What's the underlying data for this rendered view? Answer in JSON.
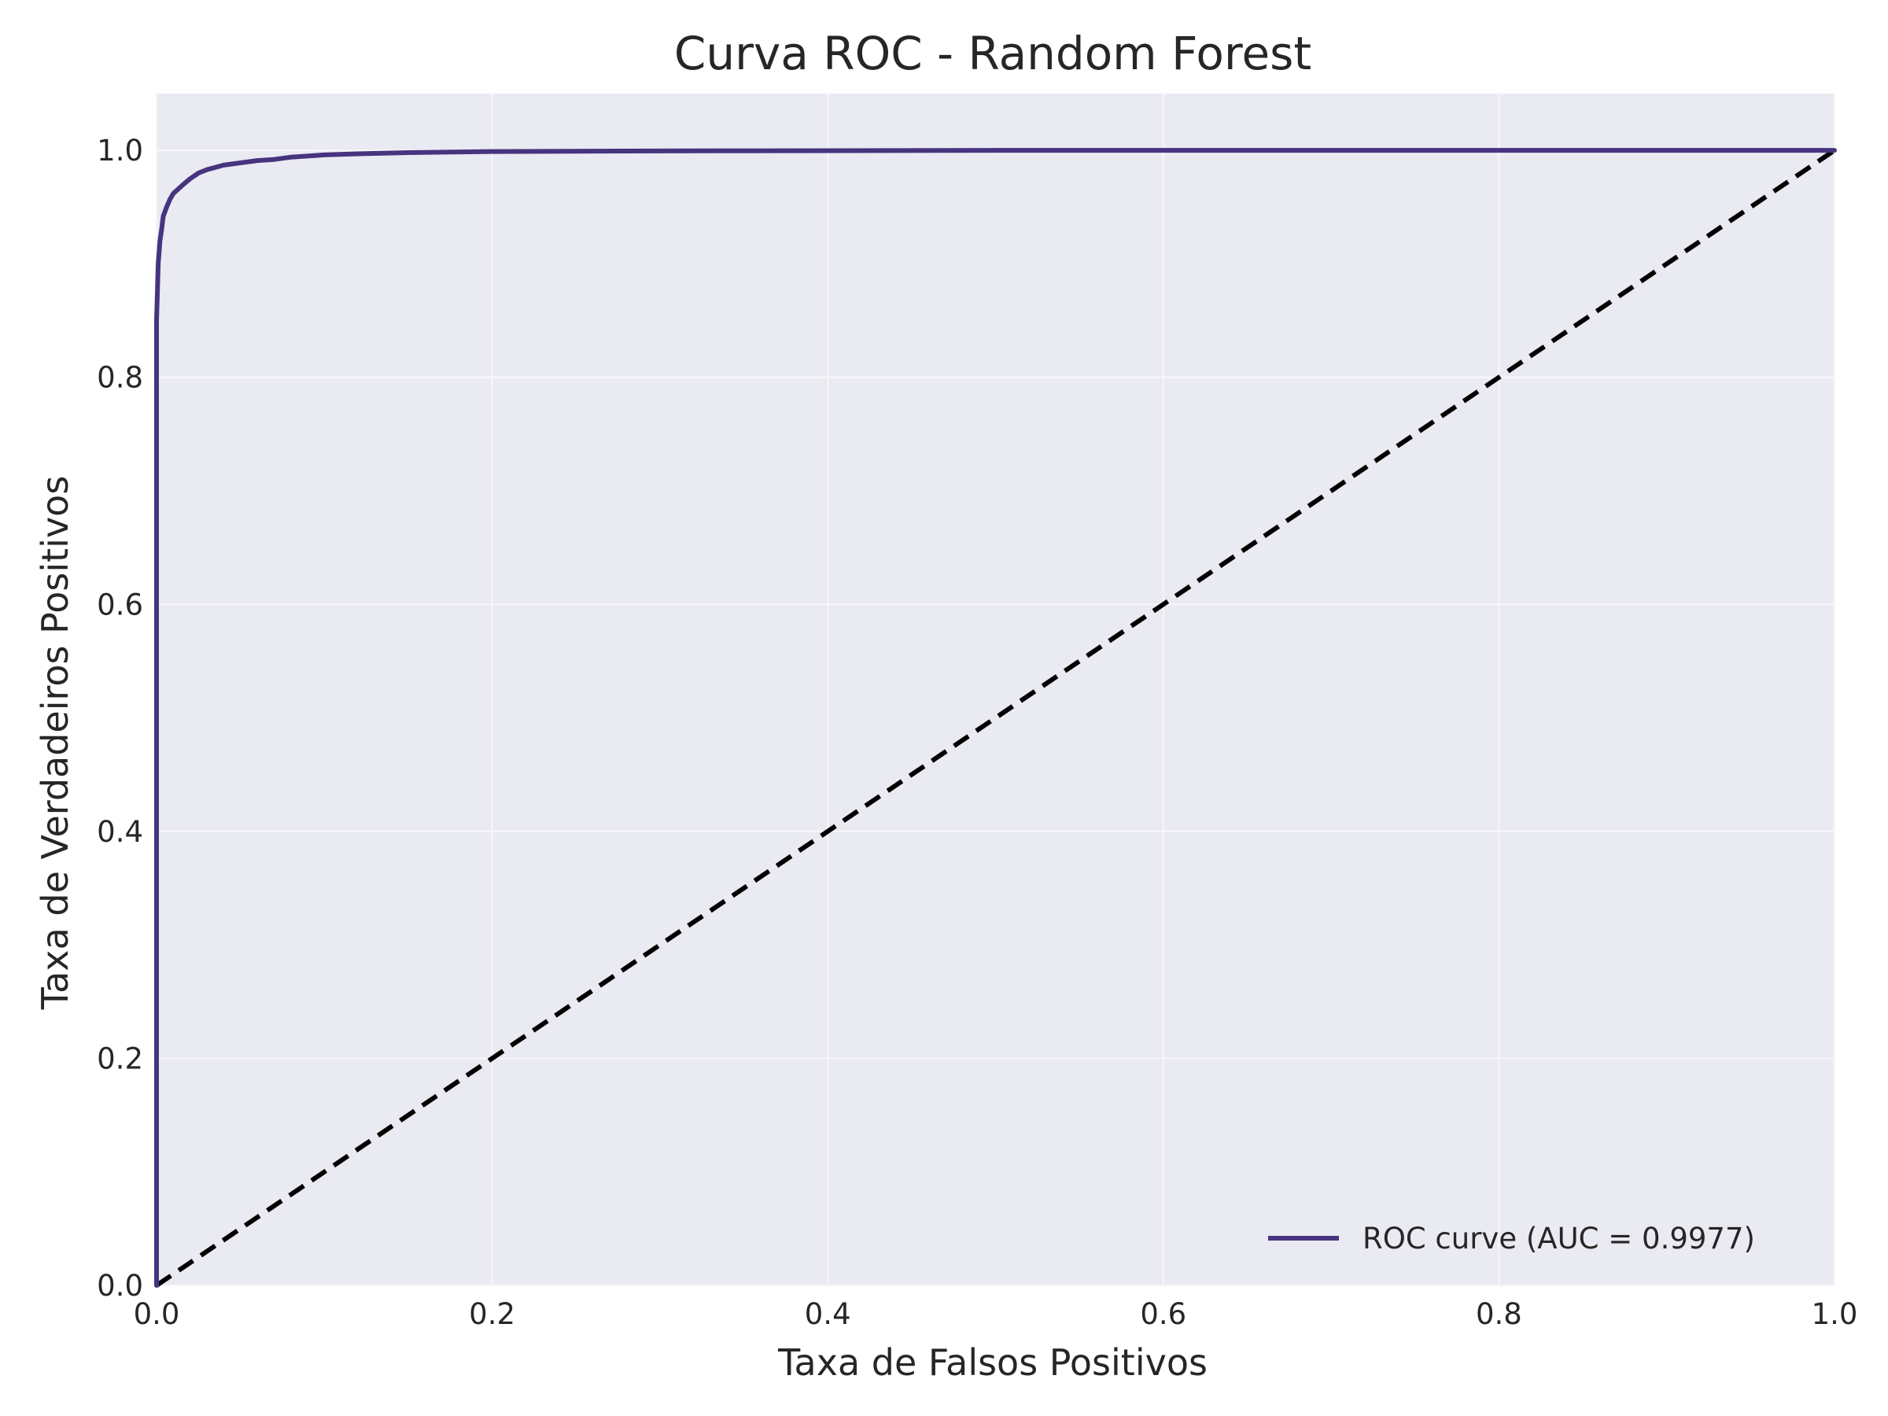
{
  "chart_data": {
    "type": "line",
    "title": "Curva ROC - Random Forest",
    "xlabel": "Taxa de Falsos Positivos",
    "ylabel": "Taxa de Verdadeiros Positivos",
    "xlim": [
      0.0,
      1.0
    ],
    "ylim": [
      0.0,
      1.05
    ],
    "x_ticks": [
      0.0,
      0.2,
      0.4,
      0.6,
      0.8,
      1.0
    ],
    "x_tick_labels": [
      "0.0",
      "0.2",
      "0.4",
      "0.6",
      "0.8",
      "1.0"
    ],
    "y_ticks": [
      0.0,
      0.2,
      0.4,
      0.6,
      0.8,
      1.0
    ],
    "y_tick_labels": [
      "0.0",
      "0.2",
      "0.4",
      "0.6",
      "0.8",
      "1.0"
    ],
    "grid": true,
    "legend_position": "lower-right",
    "background_color": "#eaeaf2",
    "series": [
      {
        "name": "ROC curve (AUC = 0.9977)",
        "color": "#46347f",
        "line_style": "solid",
        "x": [
          0.0,
          0.0,
          0.001,
          0.002,
          0.003,
          0.004,
          0.006,
          0.008,
          0.01,
          0.013,
          0.016,
          0.02,
          0.025,
          0.03,
          0.035,
          0.04,
          0.05,
          0.06,
          0.07,
          0.08,
          0.09,
          0.1,
          0.12,
          0.15,
          0.2,
          0.3,
          0.5,
          0.7,
          0.9,
          1.0
        ],
        "y": [
          0.0,
          0.85,
          0.9,
          0.92,
          0.93,
          0.942,
          0.95,
          0.957,
          0.962,
          0.966,
          0.97,
          0.975,
          0.98,
          0.983,
          0.985,
          0.987,
          0.989,
          0.991,
          0.992,
          0.994,
          0.995,
          0.996,
          0.997,
          0.998,
          0.999,
          0.9995,
          1.0,
          1.0,
          1.0,
          1.0
        ]
      },
      {
        "name": "",
        "color": "#000000",
        "line_style": "dashed",
        "x": [
          0.0,
          1.0
        ],
        "y": [
          0.0,
          1.0
        ]
      }
    ]
  }
}
